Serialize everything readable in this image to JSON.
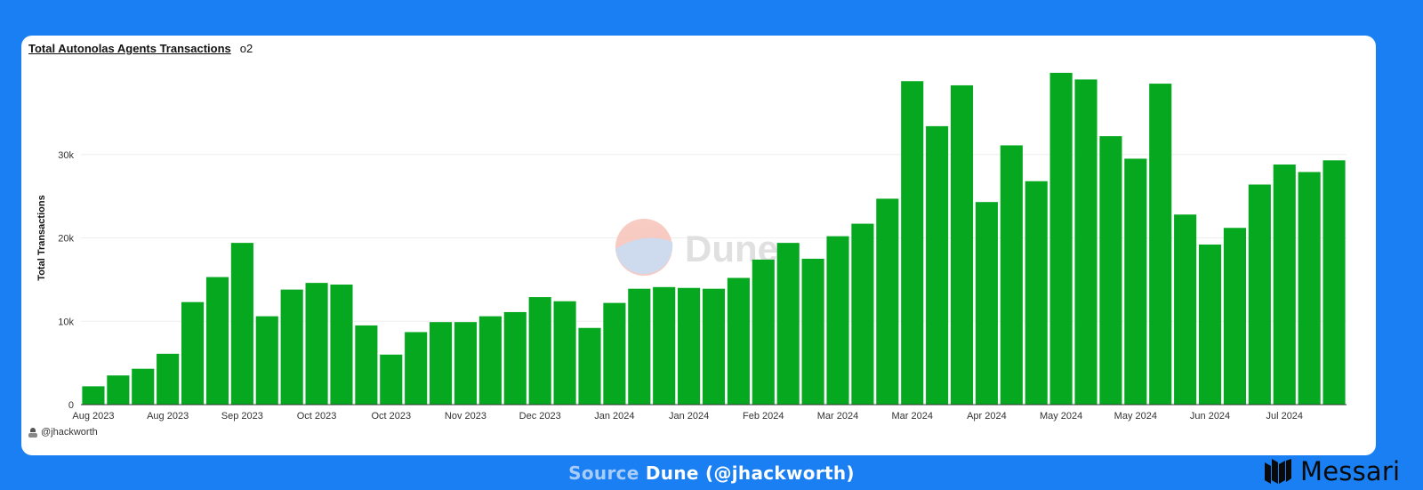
{
  "header": {
    "title": "Total Autonolas Agents Transactions",
    "subtitle": "o2"
  },
  "author": {
    "handle": "@jhackworth"
  },
  "watermark": {
    "text": "Dune"
  },
  "footer": {
    "source_label": "Source",
    "source_value": "Dune (@jhackworth)",
    "brand_name": "Messari"
  },
  "colors": {
    "page_bg": "#1A7FF2",
    "bar": "#05A81F",
    "watermark_top": "#F7C6BC",
    "watermark_bottom": "#C9D6EC"
  },
  "chart_data": {
    "type": "bar",
    "ylabel": "Total Transactions",
    "xlabel": "",
    "ylim": [
      0,
      40000
    ],
    "yticks": [
      0,
      10000,
      20000,
      30000
    ],
    "ytick_labels": [
      "0",
      "10k",
      "20k",
      "30k"
    ],
    "grid": true,
    "x_tick_labels": [
      {
        "index": 0,
        "label": "Aug 2023"
      },
      {
        "index": 3,
        "label": "Aug 2023"
      },
      {
        "index": 6,
        "label": "Sep 2023"
      },
      {
        "index": 9,
        "label": "Oct 2023"
      },
      {
        "index": 12,
        "label": "Oct 2023"
      },
      {
        "index": 15,
        "label": "Nov 2023"
      },
      {
        "index": 18,
        "label": "Dec 2023"
      },
      {
        "index": 21,
        "label": "Jan 2024"
      },
      {
        "index": 24,
        "label": "Jan 2024"
      },
      {
        "index": 27,
        "label": "Feb 2024"
      },
      {
        "index": 30,
        "label": "Mar 2024"
      },
      {
        "index": 33,
        "label": "Mar 2024"
      },
      {
        "index": 36,
        "label": "Apr 2024"
      },
      {
        "index": 39,
        "label": "May 2024"
      },
      {
        "index": 42,
        "label": "May 2024"
      },
      {
        "index": 45,
        "label": "Jun 2024"
      },
      {
        "index": 48,
        "label": "Jul 2024"
      }
    ],
    "values": [
      2200,
      3500,
      4300,
      6100,
      12300,
      15300,
      19400,
      10600,
      13800,
      14600,
      14400,
      9500,
      6000,
      8700,
      9900,
      9900,
      10600,
      11100,
      12900,
      12400,
      9200,
      12200,
      13900,
      14100,
      14000,
      13900,
      15200,
      17400,
      19400,
      17500,
      20200,
      21700,
      24700,
      38800,
      33400,
      38300,
      24300,
      31100,
      26800,
      39800,
      39000,
      32200,
      29500,
      38500,
      22800,
      19200,
      21200,
      26400,
      28800,
      27900,
      29300
    ]
  }
}
